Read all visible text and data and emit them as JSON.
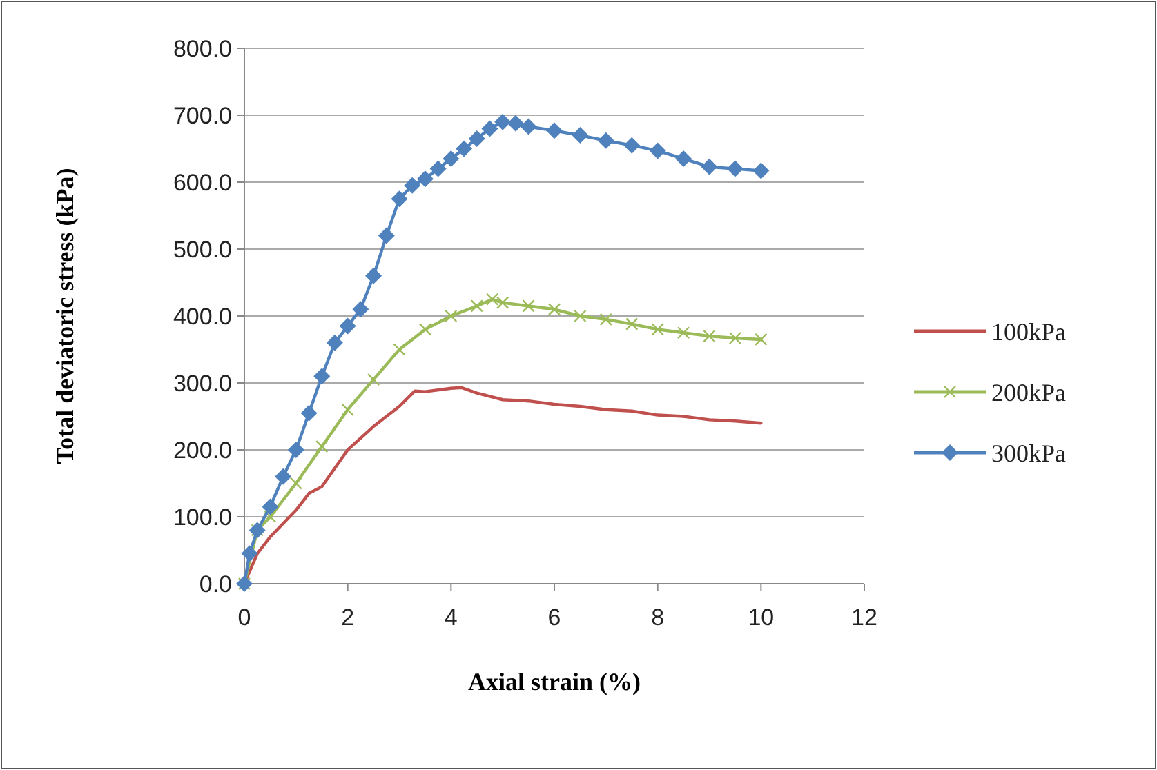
{
  "chart_data": {
    "type": "line",
    "xlabel": "Axial strain (%)",
    "ylabel": "Total deviatoric stress (kPa)",
    "xlim": [
      0,
      12
    ],
    "xticks": [
      0,
      2,
      4,
      6,
      8,
      10,
      12
    ],
    "ylim": [
      0,
      800
    ],
    "yticks": [
      {
        "value": 0,
        "label": "0.0"
      },
      {
        "value": 100,
        "label": "100.0"
      },
      {
        "value": 200,
        "label": "200.0"
      },
      {
        "value": 300,
        "label": "300.0"
      },
      {
        "value": 400,
        "label": "400.0"
      },
      {
        "value": 500,
        "label": "500.0"
      },
      {
        "value": 600,
        "label": "600.0"
      },
      {
        "value": 700,
        "label": "700.0"
      },
      {
        "value": 800,
        "label": "800.0"
      }
    ],
    "grid": "y",
    "legend": "right",
    "series": [
      {
        "name": "100kPa",
        "color": "#c0504d",
        "marker": "none",
        "x": [
          0,
          0.25,
          0.5,
          1,
          1.25,
          1.5,
          2,
          2.5,
          3,
          3.3,
          3.5,
          4,
          4.2,
          4.5,
          5,
          5.5,
          6,
          6.5,
          7,
          7.5,
          8,
          8.5,
          9,
          9.5,
          10
        ],
        "values": [
          0,
          45,
          70,
          110,
          135,
          145,
          200,
          235,
          265,
          288,
          287,
          292,
          293,
          285,
          275,
          273,
          268,
          265,
          260,
          258,
          252,
          250,
          245,
          243,
          240
        ]
      },
      {
        "name": "200kPa",
        "color": "#9bbb59",
        "marker": "cross",
        "x": [
          0,
          0.25,
          0.5,
          1,
          1.5,
          2,
          2.5,
          3,
          3.5,
          4,
          4.5,
          4.8,
          5,
          5.5,
          6,
          6.5,
          7,
          7.5,
          8,
          8.5,
          9,
          9.5,
          10
        ],
        "values": [
          0,
          80,
          100,
          150,
          205,
          260,
          305,
          350,
          380,
          400,
          415,
          425,
          420,
          415,
          410,
          400,
          395,
          388,
          380,
          375,
          370,
          367,
          365
        ]
      },
      {
        "name": "300kPa",
        "color": "#4f81bd",
        "marker": "diamond",
        "x": [
          0,
          0.1,
          0.25,
          0.5,
          0.75,
          1,
          1.25,
          1.5,
          1.75,
          2,
          2.25,
          2.5,
          2.75,
          3,
          3.25,
          3.5,
          3.75,
          4,
          4.25,
          4.5,
          4.75,
          5,
          5.25,
          5.5,
          6,
          6.5,
          7,
          7.5,
          8,
          8.5,
          9,
          9.5,
          10
        ],
        "values": [
          0,
          45,
          80,
          115,
          160,
          200,
          255,
          310,
          360,
          385,
          410,
          460,
          520,
          575,
          595,
          605,
          620,
          635,
          650,
          665,
          680,
          690,
          688,
          683,
          677,
          670,
          662,
          655,
          647,
          635,
          623,
          620,
          617
        ]
      }
    ]
  }
}
